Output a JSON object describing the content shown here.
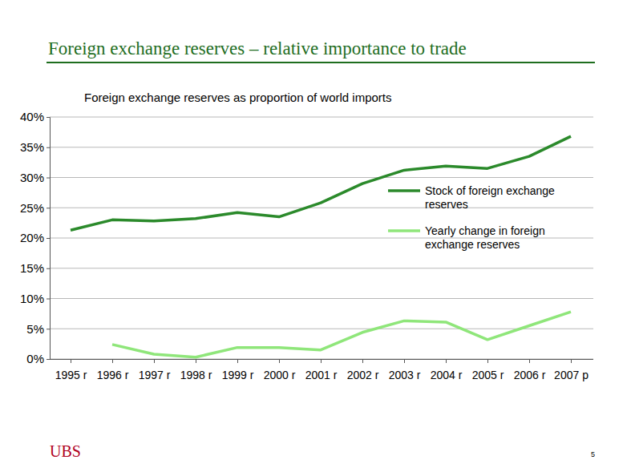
{
  "header": {
    "title": "Foreign exchange reserves – relative importance to trade"
  },
  "footer": {
    "logo": "UBS",
    "page_number": "5"
  },
  "chart_data": {
    "type": "line",
    "title": "Foreign exchange reserves as proportion of world imports",
    "categories": [
      "1995 r",
      "1996 r",
      "1997 r",
      "1998 r",
      "1999 r",
      "2000 r",
      "2001 r",
      "2002 r",
      "2003 r",
      "2004 r",
      "2005 r",
      "2006 r",
      "2007 p"
    ],
    "series": [
      {
        "name": "Stock of foreign exchange reserves",
        "color": "#2b8a2b",
        "values": [
          21.3,
          23.0,
          22.8,
          23.2,
          24.2,
          23.5,
          25.8,
          29.0,
          31.2,
          31.9,
          31.5,
          33.5,
          36.8
        ]
      },
      {
        "name": "Yearly change in foreign exchange reserves",
        "color": "#8fe67a",
        "values": [
          null,
          2.4,
          0.8,
          0.3,
          1.9,
          1.9,
          1.5,
          4.4,
          6.3,
          6.1,
          3.2,
          5.5,
          7.8
        ]
      }
    ],
    "ylim": [
      0,
      40
    ],
    "yticks": [
      {
        "value": 0,
        "label": "0%"
      },
      {
        "value": 5,
        "label": "5%"
      },
      {
        "value": 10,
        "label": "10%"
      },
      {
        "value": 15,
        "label": "15%"
      },
      {
        "value": 20,
        "label": "20%"
      },
      {
        "value": 25,
        "label": "25%"
      },
      {
        "value": 30,
        "label": "30%"
      },
      {
        "value": 35,
        "label": "35%"
      },
      {
        "value": 40,
        "label": "40%"
      }
    ],
    "grid": true,
    "legend": "right"
  }
}
